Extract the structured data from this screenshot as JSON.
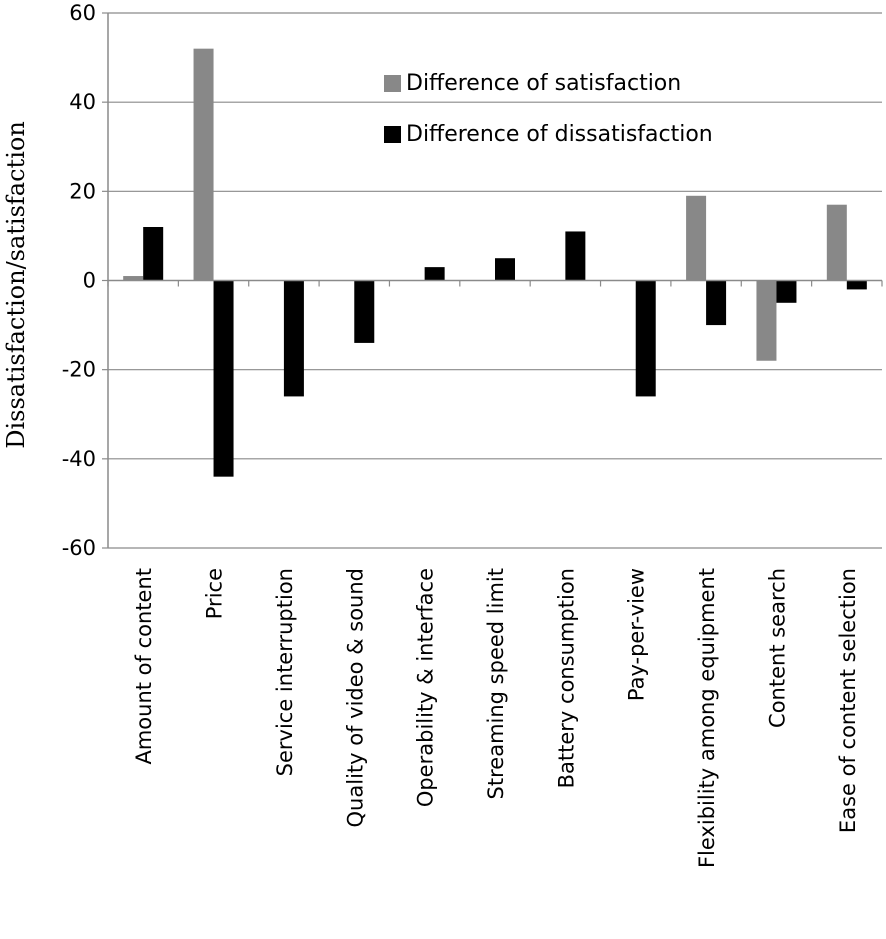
{
  "chart_data": {
    "type": "bar",
    "title": "",
    "xlabel": "",
    "ylabel": "Dissatisfaction/satisfaction",
    "ylim": [
      -60,
      60
    ],
    "yticks": [
      60,
      40,
      20,
      0,
      -20,
      -40,
      -60
    ],
    "grid": true,
    "legend_position": "top-right",
    "categories": [
      "Amount of content",
      "Price",
      "Service interruption",
      "Quality of video & sound",
      "Operability & interface",
      "Streaming speed limit",
      "Battery consumption",
      "Pay-per-view",
      "Flexibility among equipment",
      "Content search",
      "Ease of content selection"
    ],
    "series": [
      {
        "name": "Difference of satisfaction",
        "color": "#888888",
        "values": [
          1,
          52,
          0,
          0,
          0,
          0,
          0,
          0,
          19,
          -18,
          17
        ]
      },
      {
        "name": "Difference of dissatisfaction",
        "color": "#000000",
        "values": [
          12,
          -44,
          -26,
          -14,
          3,
          5,
          11,
          -26,
          -10,
          -5,
          -2
        ]
      }
    ]
  }
}
